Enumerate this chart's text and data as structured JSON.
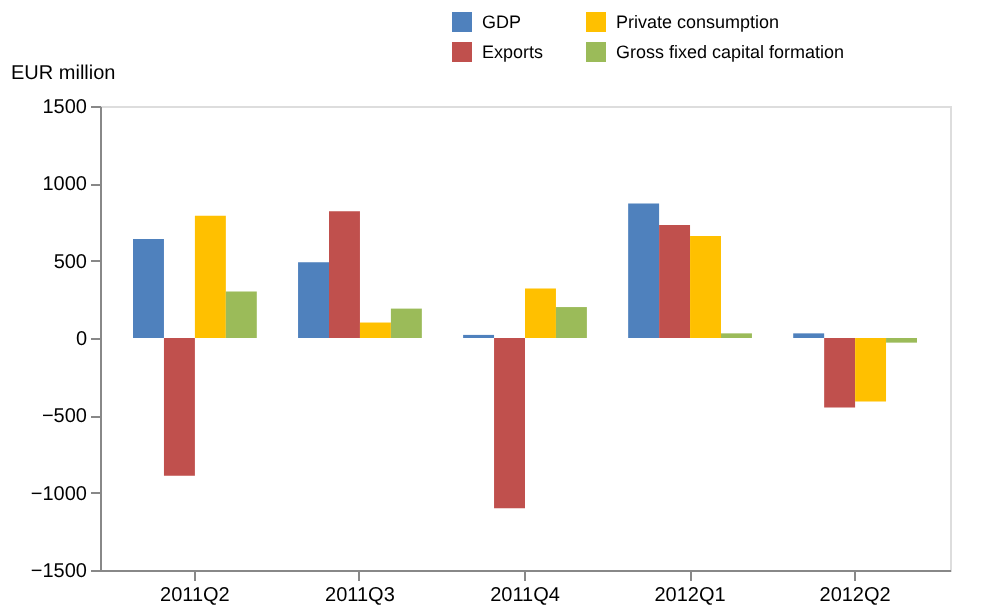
{
  "chart_data": {
    "type": "bar",
    "ylabel": "EUR million",
    "categories": [
      "2011Q2",
      "2011Q3",
      "2011Q4",
      "2012Q1",
      "2012Q2"
    ],
    "series": [
      {
        "name": "GDP",
        "color": "#4f81bd",
        "values": [
          640,
          490,
          20,
          870,
          30
        ]
      },
      {
        "name": "Exports",
        "color": "#c0504d",
        "values": [
          -890,
          820,
          -1100,
          730,
          -450
        ]
      },
      {
        "name": "Private consumption",
        "color": "#ffc000",
        "values": [
          790,
          100,
          320,
          660,
          -410
        ]
      },
      {
        "name": "Gross fixed capital formation",
        "color": "#9bbb59",
        "values": [
          300,
          190,
          200,
          30,
          -30
        ]
      }
    ],
    "ylim": [
      -1500,
      1500
    ],
    "yticks": [
      -1500,
      -1000,
      -500,
      0,
      500,
      1000,
      1500
    ],
    "grid": false,
    "legend": "top right"
  }
}
